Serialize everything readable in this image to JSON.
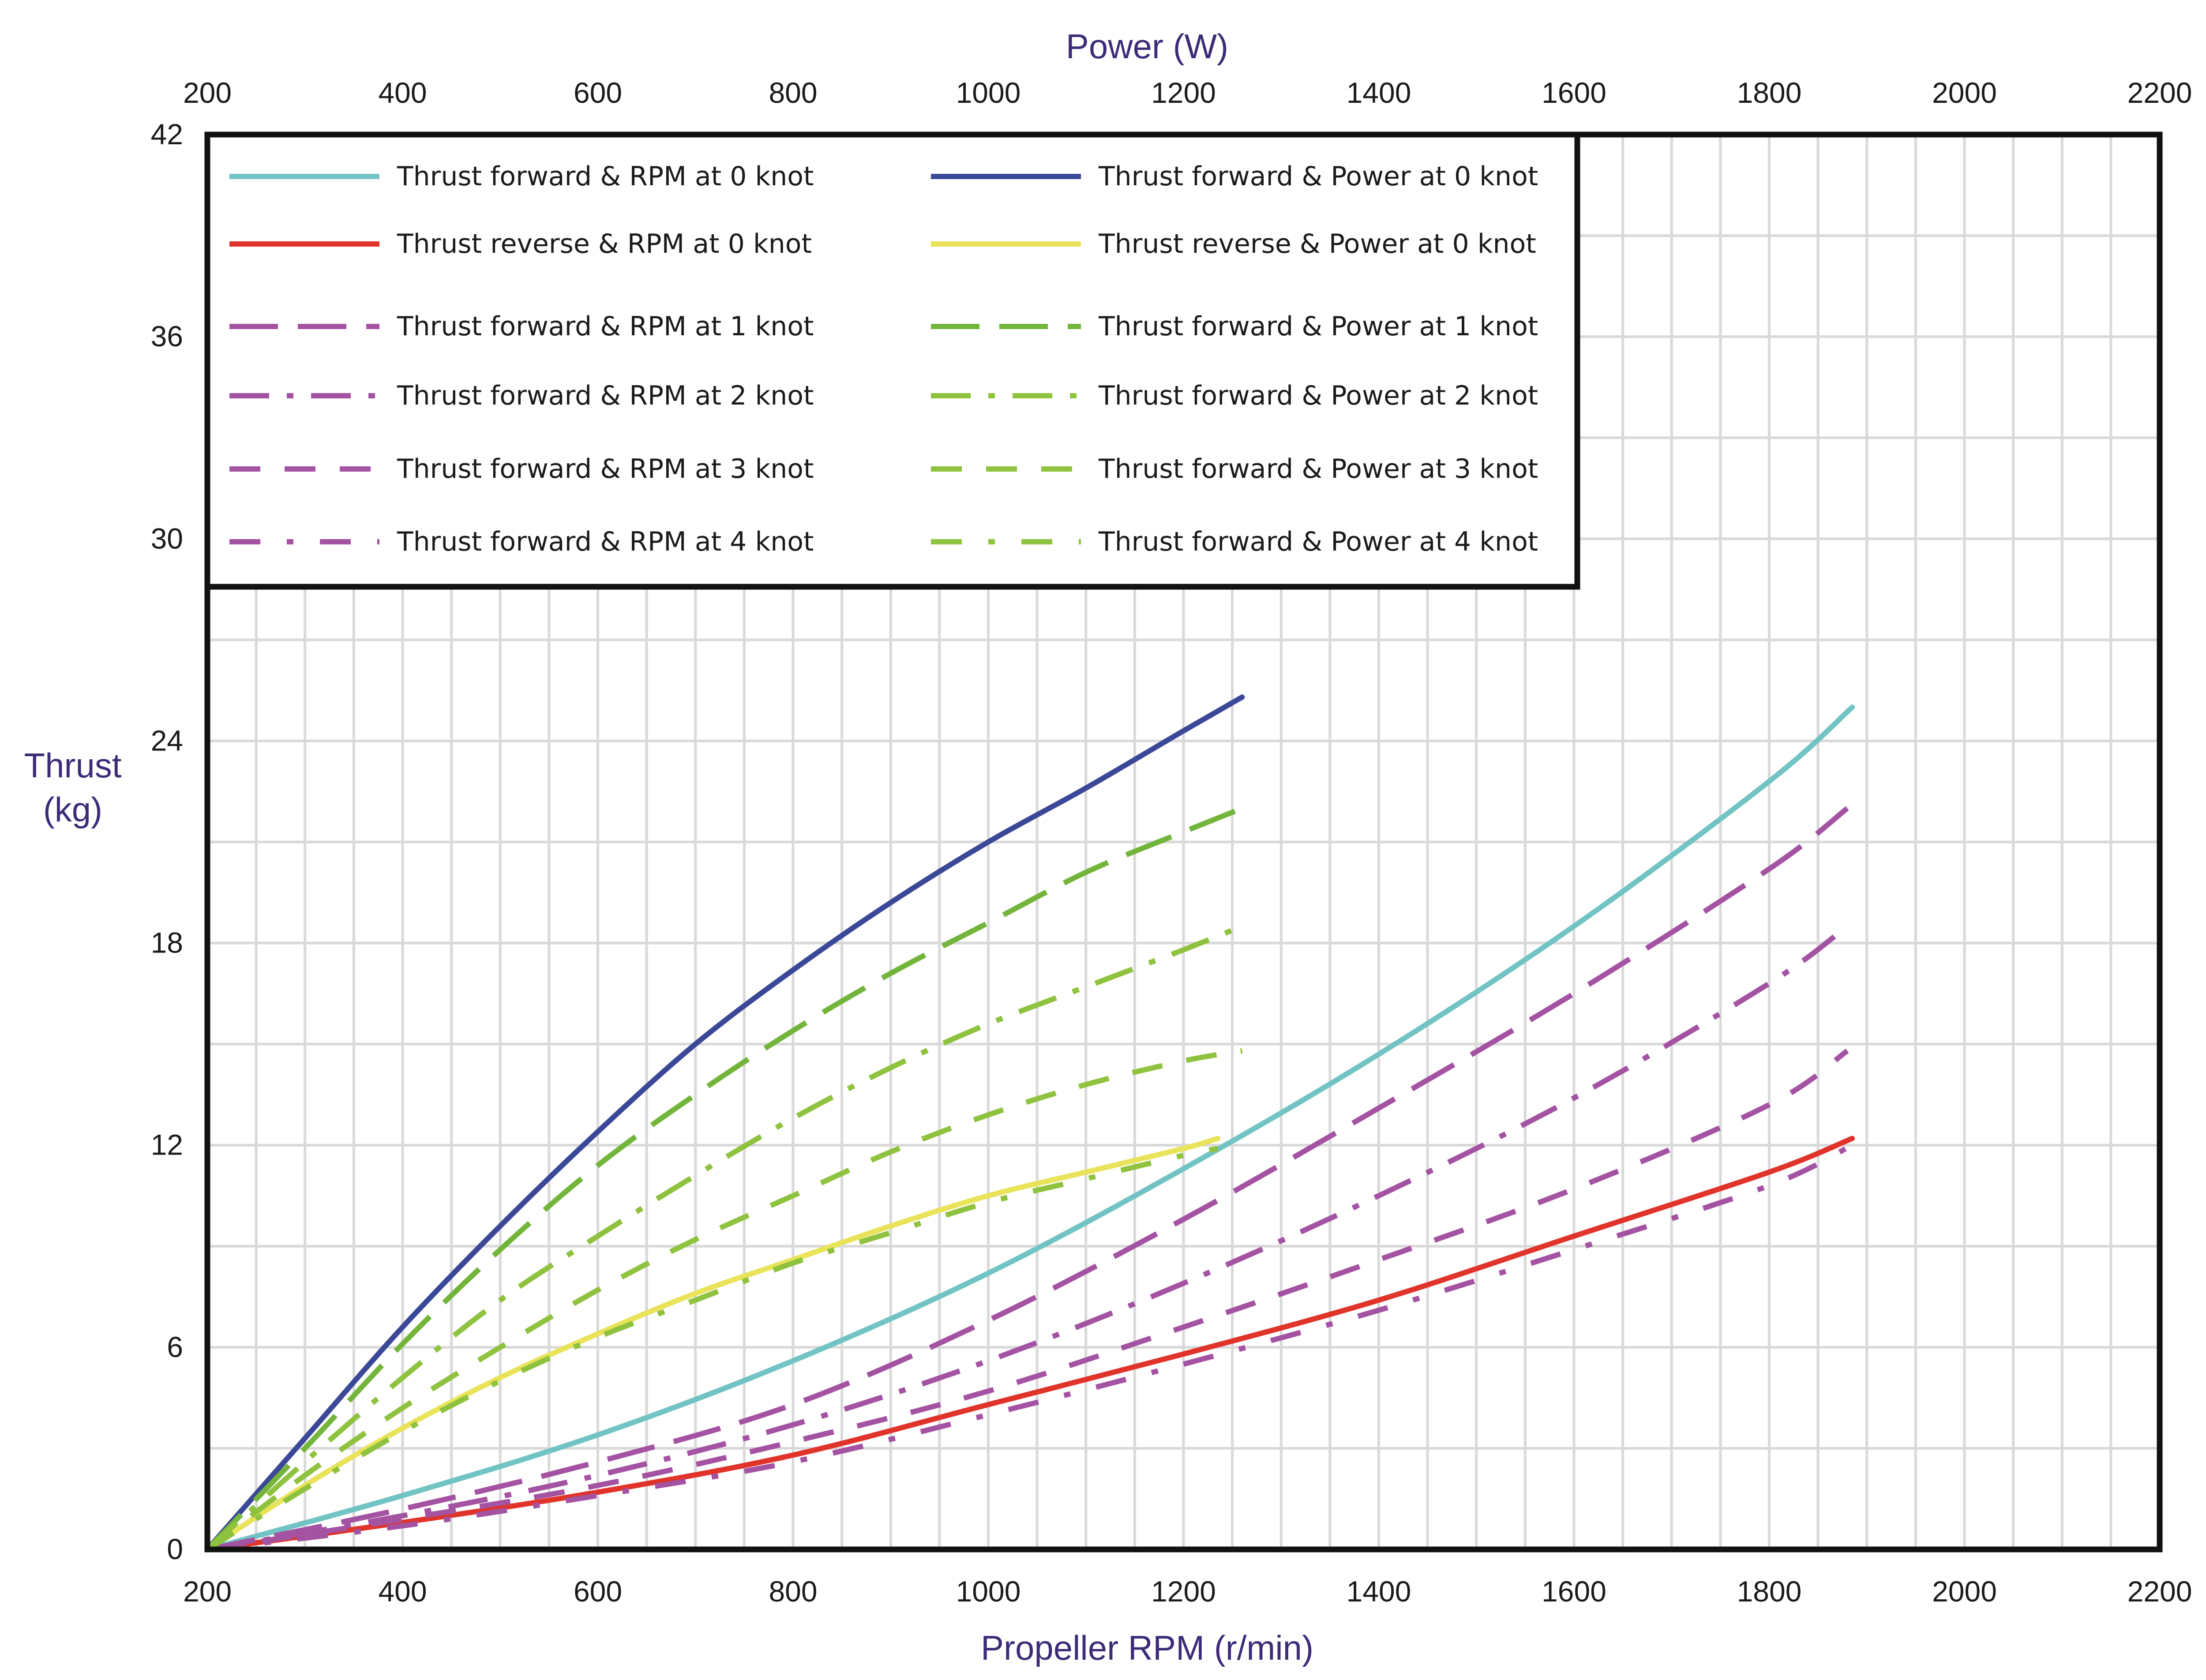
{
  "chart_data": {
    "type": "line",
    "title": "",
    "xlabel": "Propeller RPM (r/min)",
    "x2label": "Power (W)",
    "ylabel_line1": "Thrust",
    "ylabel_line2": "(kg)",
    "xlim": [
      200,
      2200
    ],
    "x2lim": [
      200,
      2200
    ],
    "ylim": [
      0,
      42
    ],
    "xticks": [
      "200",
      "400",
      "600",
      "800",
      "1000",
      "1200",
      "1400",
      "1600",
      "1800",
      "2000",
      "2200"
    ],
    "x2ticks": [
      "200",
      "400",
      "600",
      "800",
      "1000",
      "1200",
      "1400",
      "1600",
      "1800",
      "2000",
      "2200"
    ],
    "yticks": [
      "0",
      "6",
      "12",
      "18",
      "24",
      "30",
      "36",
      "42"
    ],
    "grid": true,
    "legend_position": "top-left",
    "series": [
      {
        "name": "Thrust forward &  RPM at 0 knot",
        "axis": "RPM",
        "color": "#72c3c3",
        "dash": "solid",
        "x": [
          200,
          400,
          600,
          800,
          1000,
          1200,
          1400,
          1600,
          1800,
          1885
        ],
        "y": [
          0,
          1.6,
          3.4,
          5.6,
          8.2,
          11.3,
          14.7,
          18.5,
          22.8,
          25.0
        ]
      },
      {
        "name": "Thrust reverse  &  RPM at 0 knot",
        "axis": "RPM",
        "color": "#e0342b",
        "dash": "solid",
        "x": [
          200,
          400,
          600,
          800,
          1000,
          1200,
          1400,
          1600,
          1800,
          1885
        ],
        "y": [
          0,
          0.8,
          1.7,
          2.8,
          4.3,
          5.8,
          7.4,
          9.3,
          11.2,
          12.2
        ]
      },
      {
        "name": "Thrust forward &  RPM at 1 knot",
        "axis": "RPM",
        "color": "#a452a2",
        "dash": "long",
        "x": [
          200,
          400,
          600,
          800,
          1000,
          1200,
          1400,
          1600,
          1800,
          1880
        ],
        "y": [
          0,
          1.2,
          2.6,
          4.3,
          6.8,
          9.8,
          13.1,
          16.5,
          20.2,
          22.0
        ]
      },
      {
        "name": "Thrust forward &  RPM at 2 knot",
        "axis": "RPM",
        "color": "#a452a2",
        "dash": "dashdot",
        "x": [
          200,
          400,
          600,
          800,
          1000,
          1200,
          1400,
          1600,
          1800,
          1880
        ],
        "y": [
          0,
          1.0,
          2.2,
          3.7,
          5.6,
          7.9,
          10.5,
          13.4,
          16.8,
          18.5
        ]
      },
      {
        "name": "Thrust forward &  RPM at 3 knot",
        "axis": "RPM",
        "color": "#a452a2",
        "dash": "medium",
        "x": [
          200,
          400,
          600,
          800,
          1000,
          1200,
          1400,
          1600,
          1800,
          1880
        ],
        "y": [
          0,
          0.9,
          1.9,
          3.2,
          4.7,
          6.6,
          8.6,
          10.7,
          13.2,
          14.8
        ]
      },
      {
        "name": "Thrust forward &  RPM at 4 knot",
        "axis": "RPM",
        "color": "#a452a2",
        "dash": "dashdotsparse",
        "x": [
          200,
          400,
          600,
          800,
          1000,
          1200,
          1400,
          1600,
          1800,
          1885
        ],
        "y": [
          0,
          0.7,
          1.6,
          2.6,
          4.0,
          5.5,
          7.1,
          8.9,
          10.8,
          12.0
        ]
      },
      {
        "name": "Thrust forward & Power at 0 knot",
        "axis": "Power",
        "color": "#3b4897",
        "dash": "solid",
        "x": [
          200,
          300,
          400,
          500,
          600,
          700,
          800,
          900,
          1000,
          1100,
          1200,
          1260
        ],
        "y": [
          0,
          3.3,
          6.6,
          9.6,
          12.4,
          15.0,
          17.2,
          19.2,
          21.0,
          22.6,
          24.3,
          25.3
        ]
      },
      {
        "name": "Thrust reverse & Power at 0 knot",
        "axis": "Power",
        "color": "#e8e359",
        "dash": "solid",
        "x": [
          200,
          300,
          400,
          500,
          600,
          700,
          800,
          900,
          1000,
          1100,
          1200,
          1235
        ],
        "y": [
          0,
          1.9,
          3.6,
          5.1,
          6.4,
          7.6,
          8.6,
          9.6,
          10.5,
          11.2,
          11.9,
          12.2
        ]
      },
      {
        "name": "Thrust forward & Power at 1 knot",
        "axis": "Power",
        "color": "#73b53b",
        "dash": "long",
        "x": [
          200,
          300,
          400,
          500,
          600,
          700,
          800,
          900,
          1000,
          1100,
          1200,
          1260
        ],
        "y": [
          0,
          3.0,
          6.1,
          8.9,
          11.4,
          13.5,
          15.4,
          17.1,
          18.6,
          20.1,
          21.3,
          22.0
        ]
      },
      {
        "name": "Thrust forward & Power at 2 knot",
        "axis": "Power",
        "color": "#8fc23f",
        "dash": "dashdot",
        "x": [
          200,
          300,
          400,
          500,
          600,
          700,
          800,
          900,
          1000,
          1100,
          1200,
          1260
        ],
        "y": [
          0,
          2.6,
          5.1,
          7.4,
          9.3,
          11.1,
          12.8,
          14.3,
          15.6,
          16.7,
          17.8,
          18.5
        ]
      },
      {
        "name": "Thrust forward & Power at 3 knot",
        "axis": "Power",
        "color": "#8fc23f",
        "dash": "medium",
        "x": [
          200,
          300,
          400,
          500,
          600,
          700,
          800,
          900,
          1000,
          1100,
          1200,
          1260
        ],
        "y": [
          0,
          2.2,
          4.2,
          6.0,
          7.7,
          9.2,
          10.5,
          11.8,
          12.9,
          13.8,
          14.5,
          14.8
        ]
      },
      {
        "name": "Thrust forward & Power at 4 knot",
        "axis": "Power",
        "color": "#8fc23f",
        "dash": "dashdotsparse",
        "x": [
          200,
          300,
          400,
          500,
          600,
          700,
          800,
          900,
          1000,
          1100,
          1200,
          1235
        ],
        "y": [
          0,
          1.8,
          3.5,
          5.0,
          6.3,
          7.4,
          8.5,
          9.4,
          10.3,
          11.0,
          11.7,
          11.9
        ]
      }
    ]
  }
}
